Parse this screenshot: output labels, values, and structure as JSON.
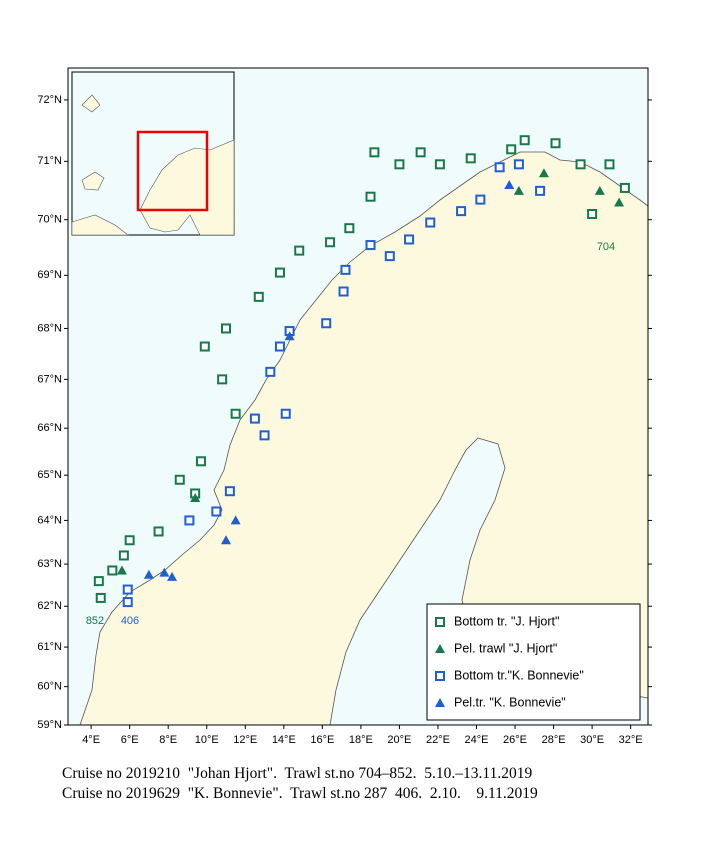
{
  "chart_data": {
    "type": "scatter",
    "projection": "mercator",
    "xlim": [
      2.8,
      32.9
    ],
    "ylim": [
      59,
      72.5
    ],
    "xticks": [
      {
        "value": 4,
        "label": "4°E"
      },
      {
        "value": 6,
        "label": "6°E"
      },
      {
        "value": 8,
        "label": "8°E"
      },
      {
        "value": 10,
        "label": "10°E"
      },
      {
        "value": 12,
        "label": "12°E"
      },
      {
        "value": 14,
        "label": "14°E"
      },
      {
        "value": 16,
        "label": "16°E"
      },
      {
        "value": 18,
        "label": "18°E"
      },
      {
        "value": 20,
        "label": "20°E"
      },
      {
        "value": 22,
        "label": "22°E"
      },
      {
        "value": 24,
        "label": "24°E"
      },
      {
        "value": 26,
        "label": "26°E"
      },
      {
        "value": 28,
        "label": "28°E"
      },
      {
        "value": 30,
        "label": "30°E"
      },
      {
        "value": 32,
        "label": "32°E"
      }
    ],
    "yticks": [
      {
        "value": 59,
        "label": "59°N"
      },
      {
        "value": 60,
        "label": "60°N"
      },
      {
        "value": 61,
        "label": "61°N"
      },
      {
        "value": 62,
        "label": "62°N"
      },
      {
        "value": 63,
        "label": "63°N"
      },
      {
        "value": 64,
        "label": "64°N"
      },
      {
        "value": 65,
        "label": "65°N"
      },
      {
        "value": 66,
        "label": "66°N"
      },
      {
        "value": 67,
        "label": "67°N"
      },
      {
        "value": 68,
        "label": "68°N"
      },
      {
        "value": 69,
        "label": "69°N"
      },
      {
        "value": 70,
        "label": "70°N"
      },
      {
        "value": 71,
        "label": "71°N"
      },
      {
        "value": 72,
        "label": "72°N"
      }
    ],
    "series": [
      {
        "name": "Bottom tr. \"J. Hjort\"",
        "color": "#17794a",
        "marker": "square",
        "x": [
          4.5,
          4.4,
          5.1,
          5.7,
          6.0,
          7.5,
          8.6,
          9.4,
          9.7,
          11.5,
          10.8,
          9.9,
          11.0,
          12.7,
          13.8,
          14.8,
          16.4,
          17.4,
          18.5,
          18.7,
          20.0,
          21.1,
          22.1,
          23.7,
          25.8,
          26.5,
          28.1,
          29.4,
          30.9,
          31.7,
          30.0
        ],
        "values": [
          62.2,
          62.6,
          62.85,
          63.2,
          63.55,
          63.75,
          64.9,
          64.6,
          65.3,
          66.3,
          67.0,
          67.65,
          68.0,
          68.6,
          69.05,
          69.45,
          69.6,
          69.85,
          70.4,
          71.15,
          70.95,
          71.15,
          70.95,
          71.05,
          71.2,
          71.35,
          71.3,
          70.95,
          70.95,
          70.55,
          70.1
        ]
      },
      {
        "name": "Pel. trawl \"J. Hjort\"",
        "color": "#17794a",
        "marker": "triangle",
        "x": [
          5.6,
          9.4,
          26.2,
          27.5,
          30.4,
          31.4
        ],
        "values": [
          62.85,
          64.5,
          70.5,
          70.8,
          70.5,
          70.3
        ]
      },
      {
        "name": "Bottom tr.\"K. Bonnevie\"",
        "color": "#1f5fcf",
        "marker": "square",
        "x": [
          5.9,
          5.9,
          9.1,
          10.5,
          11.2,
          12.5,
          13.0,
          14.1,
          13.3,
          13.8,
          14.3,
          16.2,
          17.1,
          17.2,
          18.5,
          19.5,
          20.5,
          21.6,
          23.2,
          24.2,
          25.2,
          26.2,
          27.3
        ],
        "values": [
          62.1,
          62.4,
          64.0,
          64.2,
          64.65,
          66.2,
          65.85,
          66.3,
          67.15,
          67.65,
          67.95,
          68.1,
          68.7,
          69.1,
          69.55,
          69.35,
          69.65,
          69.95,
          70.15,
          70.35,
          70.9,
          70.95,
          70.5
        ]
      },
      {
        "name": "Pel.tr. \"K. Bonnevie\"",
        "color": "#1f5fcf",
        "marker": "triangle",
        "x": [
          7.0,
          7.8,
          8.2,
          11.0,
          11.5,
          14.3,
          25.7
        ],
        "values": [
          62.75,
          62.8,
          62.7,
          63.55,
          64.0,
          67.85,
          70.6
        ]
      }
    ],
    "annotations": [
      "704",
      "852",
      "406"
    ],
    "captions": [
      "Cruise no 2019210  \"Johan Hjort\".  Trawl st.no 704–852.  5.10.–13.11.2019",
      "Cruise no 2019629  \"K. Bonnevie\".  Trawl st.no 287  406.  2.10.    9.11.2019"
    ]
  }
}
